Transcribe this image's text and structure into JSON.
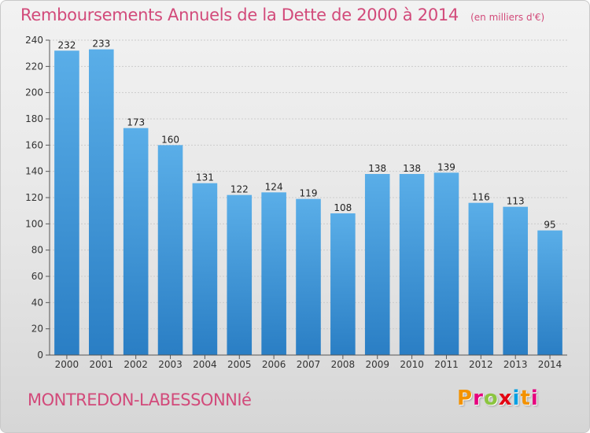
{
  "title": "Remboursements Annuels de la Dette de 2000 à 2014",
  "unit": "(en milliers d'€)",
  "footer_label": "MONTREDON-LABESSONNIé",
  "logo": {
    "text": "Proxiti",
    "colors": [
      "#f39200",
      "#e6007e",
      "#8bc53f",
      "#e30613",
      "#009fe3",
      "#f39200",
      "#e6007e"
    ]
  },
  "colors": {
    "title": "#d24a7a",
    "bar_top": "#5aaee8",
    "bar_bottom": "#2a7ec4",
    "axis": "#555555",
    "grid": "#cccccc"
  },
  "chart_data": {
    "type": "bar",
    "categories": [
      "2000",
      "2001",
      "2002",
      "2003",
      "2004",
      "2005",
      "2006",
      "2007",
      "2008",
      "2009",
      "2010",
      "2011",
      "2012",
      "2013",
      "2014"
    ],
    "values": [
      232,
      233,
      173,
      160,
      131,
      122,
      124,
      119,
      108,
      138,
      138,
      139,
      116,
      113,
      95
    ],
    "ylim": [
      0,
      240
    ],
    "yticks": [
      "0",
      "20",
      "40",
      "60",
      "80",
      "100",
      "120",
      "140",
      "160",
      "180",
      "200",
      "220",
      "240"
    ],
    "grid": true,
    "legend": "none"
  }
}
